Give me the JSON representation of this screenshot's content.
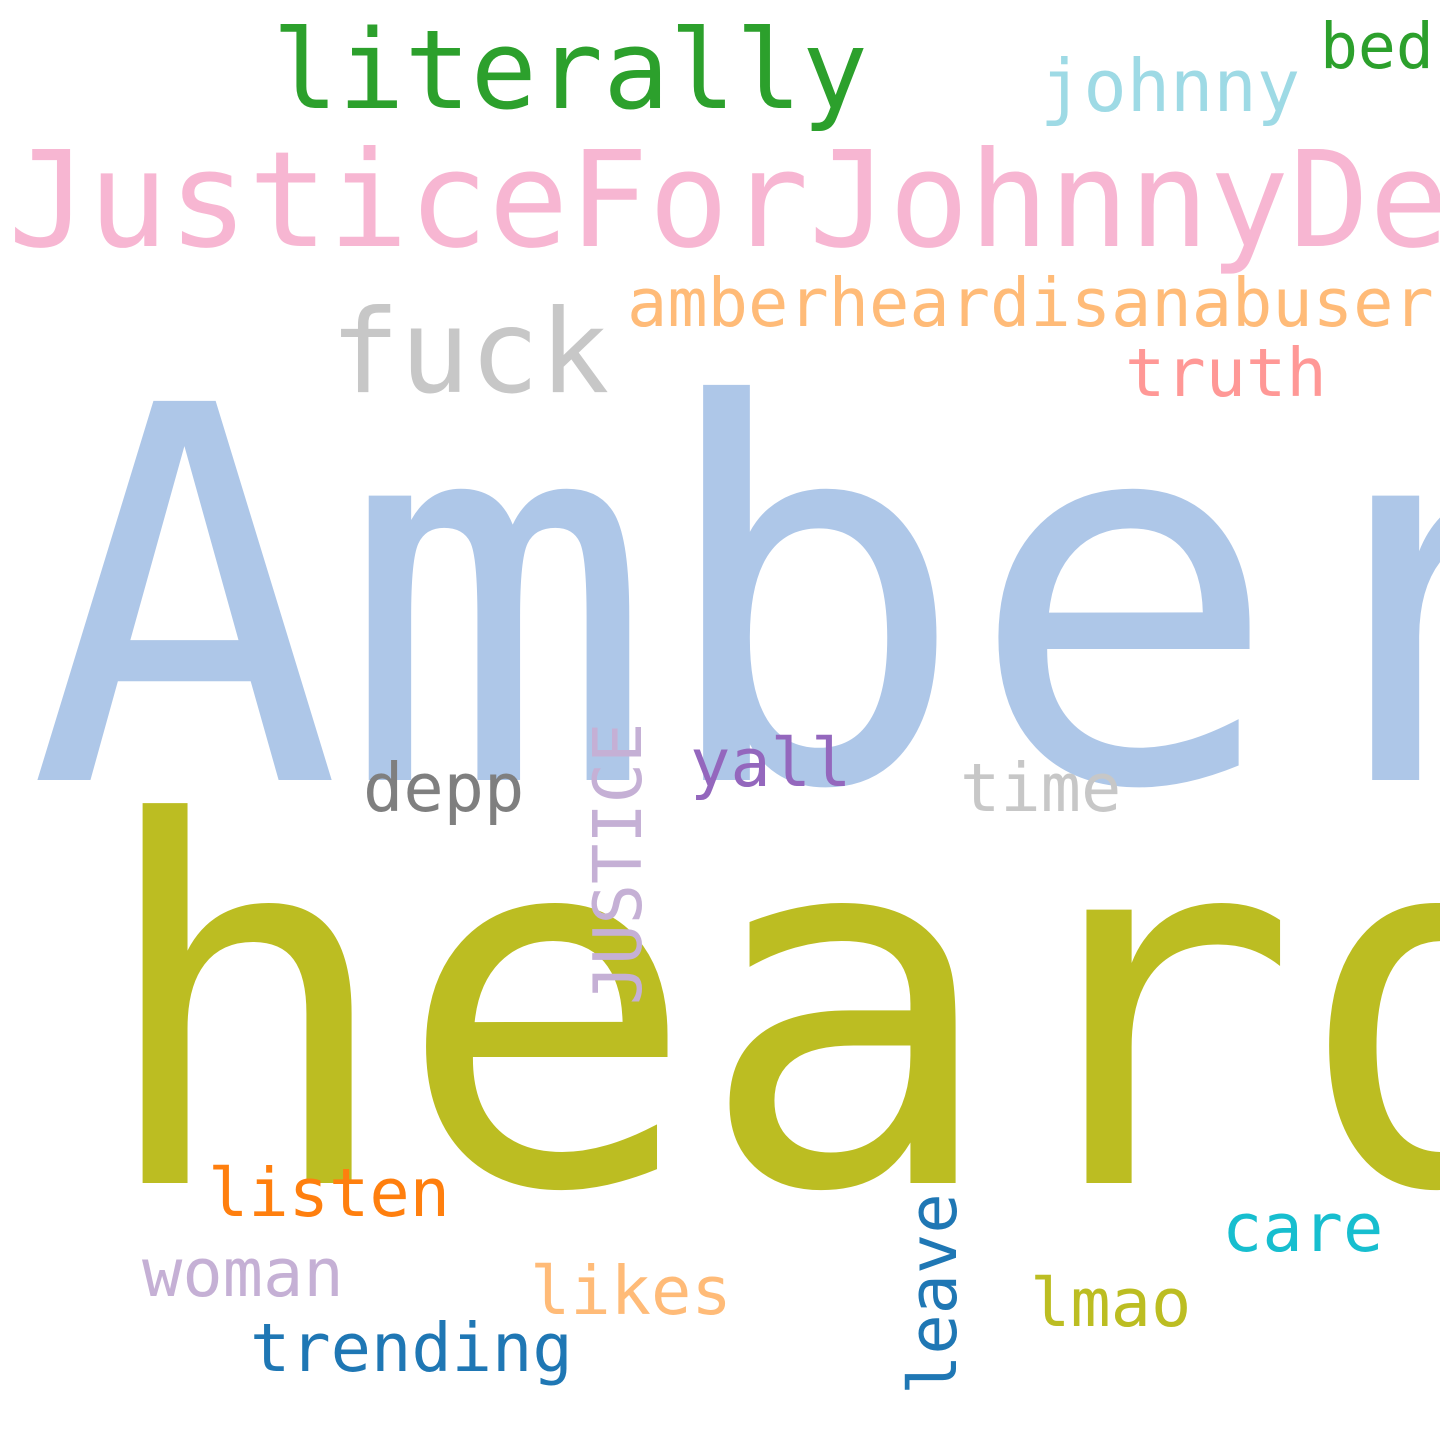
{
  "words": {
    "amber": {
      "text": "Amber",
      "color": "#aec7e8"
    },
    "heard": {
      "text": "heard",
      "color": "#bcbd22"
    },
    "justicefor": {
      "text": "JusticeForJohnnyDepp",
      "color": "#f7b6d2"
    },
    "literally": {
      "text": "literally",
      "color": "#2ca02c"
    },
    "fuck": {
      "text": "fuck",
      "color": "#c7c7c7"
    },
    "amberheard": {
      "text": "amberheardisanabuser",
      "color": "#ffbb78"
    },
    "johnny": {
      "text": "johnny",
      "color": "#9edae5"
    },
    "bed": {
      "text": "bed",
      "color": "#2ca02c"
    },
    "truth": {
      "text": "truth",
      "color": "#ff9896"
    },
    "depp": {
      "text": "depp",
      "color": "#7f7f7f"
    },
    "yall": {
      "text": "yall",
      "color": "#9467bd"
    },
    "time": {
      "text": "time",
      "color": "#c7c7c7"
    },
    "justice": {
      "text": "JUSTICE",
      "color": "#c5b0d5"
    },
    "listen": {
      "text": "listen",
      "color": "#ff7f0e"
    },
    "woman": {
      "text": "woman",
      "color": "#c5b0d5"
    },
    "likes": {
      "text": "likes",
      "color": "#ffbb78"
    },
    "trending": {
      "text": "trending",
      "color": "#1f77b4"
    },
    "leave": {
      "text": "leave",
      "color": "#1f77b4"
    },
    "lmao": {
      "text": "lmao",
      "color": "#bcbd22"
    },
    "care": {
      "text": "care",
      "color": "#17becf"
    }
  }
}
